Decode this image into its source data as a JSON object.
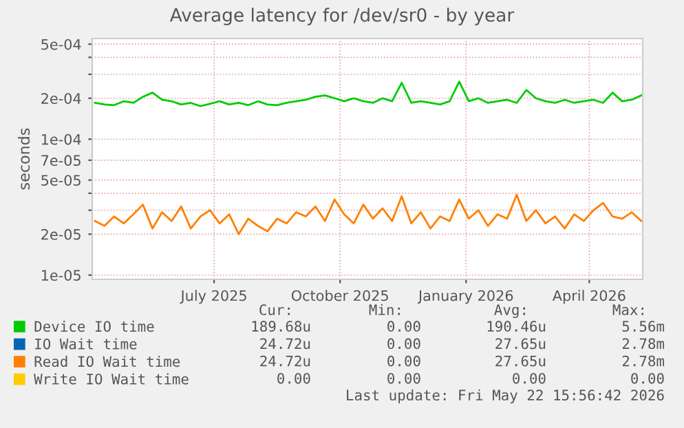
{
  "chart_data": {
    "type": "line",
    "title": "Average latency for /dev/sr0 - by year",
    "ylabel": "seconds",
    "log": "y",
    "x": [
      "2025-04-05",
      "2025-04-12",
      "2025-04-19",
      "2025-04-26",
      "2025-05-03",
      "2025-05-10",
      "2025-05-17",
      "2025-05-24",
      "2025-05-31",
      "2025-06-07",
      "2025-06-14",
      "2025-06-21",
      "2025-06-28",
      "2025-07-05",
      "2025-07-12",
      "2025-07-19",
      "2025-07-26",
      "2025-08-02",
      "2025-08-09",
      "2025-08-16",
      "2025-08-23",
      "2025-08-30",
      "2025-09-06",
      "2025-09-13",
      "2025-09-20",
      "2025-09-27",
      "2025-10-04",
      "2025-10-11",
      "2025-10-18",
      "2025-10-25",
      "2025-11-01",
      "2025-11-08",
      "2025-11-15",
      "2025-11-22",
      "2025-11-29",
      "2025-12-06",
      "2025-12-13",
      "2025-12-20",
      "2025-12-27",
      "2026-01-03",
      "2026-01-10",
      "2026-01-17",
      "2026-01-24",
      "2026-01-31",
      "2026-02-07",
      "2026-02-14",
      "2026-02-21",
      "2026-02-28",
      "2026-03-07",
      "2026-03-14",
      "2026-03-21",
      "2026-03-28",
      "2026-04-04",
      "2026-04-11",
      "2026-04-18",
      "2026-04-25",
      "2026-05-02",
      "2026-05-09"
    ],
    "xlim": [
      "2025-04-03",
      "2026-05-10"
    ],
    "xticks": [
      {
        "value": "2025-07-01",
        "label": "July 2025"
      },
      {
        "value": "2025-10-01",
        "label": "October 2025"
      },
      {
        "value": "2026-01-01",
        "label": "January 2026"
      },
      {
        "value": "2026-04-01",
        "label": "April 2026"
      }
    ],
    "ylim": [
      9.3e-06,
      0.00055
    ],
    "yticks": [
      {
        "value": 1e-05,
        "label": "1e-05"
      },
      {
        "value": 2e-05,
        "label": "2e-05"
      },
      {
        "value": 3e-05,
        "label": null
      },
      {
        "value": 4e-05,
        "label": null
      },
      {
        "value": 5e-05,
        "label": "5e-05"
      },
      {
        "value": 7e-05,
        "label": "7e-05"
      },
      {
        "value": 0.0001,
        "label": "1e-04"
      },
      {
        "value": 0.0002,
        "label": "2e-04"
      },
      {
        "value": 0.0003,
        "label": null
      },
      {
        "value": 0.0004,
        "label": null
      },
      {
        "value": 0.0005,
        "label": "5e-04"
      }
    ],
    "grid": true,
    "legend": "bottom",
    "series": [
      {
        "name": "Device IO time",
        "color": "#00cc00",
        "values": [
          0.000185,
          0.00018,
          0.000178,
          0.00019,
          0.000185,
          0.000205,
          0.00022,
          0.000195,
          0.00019,
          0.00018,
          0.000185,
          0.000175,
          0.000182,
          0.00019,
          0.00018,
          0.000185,
          0.000178,
          0.00019,
          0.00018,
          0.000178,
          0.000185,
          0.00019,
          0.000195,
          0.000205,
          0.00021,
          0.0002,
          0.00019,
          0.0002,
          0.00019,
          0.000185,
          0.0002,
          0.00019,
          0.00026,
          0.000185,
          0.00019,
          0.000185,
          0.00018,
          0.00019,
          0.000265,
          0.00019,
          0.0002,
          0.000185,
          0.00019,
          0.000195,
          0.000185,
          0.00023,
          0.0002,
          0.00019,
          0.000185,
          0.000195,
          0.000185,
          0.00019,
          0.000195,
          0.000185,
          0.00022,
          0.00019,
          0.000195,
          0.00021
        ]
      },
      {
        "name": "IO Wait time",
        "color": "#0066b3",
        "values": [
          null,
          null,
          null,
          null,
          null,
          null,
          null,
          null,
          null,
          null,
          null,
          null,
          null,
          null,
          null,
          null,
          null,
          null,
          null,
          null,
          null,
          null,
          null,
          null,
          null,
          null,
          null,
          null,
          null,
          null,
          null,
          null,
          null,
          null,
          null,
          null,
          null,
          null,
          null,
          null,
          null,
          null,
          null,
          null,
          null,
          null,
          null,
          null,
          null,
          null,
          null,
          null,
          null,
          null,
          null,
          null,
          null,
          null
        ]
      },
      {
        "name": "Read IO Wait time",
        "color": "#ff8000",
        "values": [
          2.5e-05,
          2.3e-05,
          2.7e-05,
          2.4e-05,
          2.8e-05,
          3.3e-05,
          2.2e-05,
          2.9e-05,
          2.5e-05,
          3.2e-05,
          2.2e-05,
          2.7e-05,
          3e-05,
          2.4e-05,
          2.8e-05,
          2e-05,
          2.6e-05,
          2.3e-05,
          2.1e-05,
          2.6e-05,
          2.4e-05,
          2.9e-05,
          2.7e-05,
          3.2e-05,
          2.5e-05,
          3.6e-05,
          2.8e-05,
          2.4e-05,
          3.3e-05,
          2.6e-05,
          3.1e-05,
          2.5e-05,
          3.8e-05,
          2.4e-05,
          2.9e-05,
          2.2e-05,
          2.7e-05,
          2.5e-05,
          3.6e-05,
          2.6e-05,
          3e-05,
          2.3e-05,
          2.8e-05,
          2.6e-05,
          3.9e-05,
          2.5e-05,
          3e-05,
          2.4e-05,
          2.7e-05,
          2.2e-05,
          2.8e-05,
          2.5e-05,
          3e-05,
          3.4e-05,
          2.7e-05,
          2.6e-05,
          2.9e-05,
          2.5e-05
        ]
      },
      {
        "name": "Write IO Wait time",
        "color": "#ffcc00",
        "values": [
          null,
          null,
          null,
          null,
          null,
          null,
          null,
          null,
          null,
          null,
          null,
          null,
          null,
          null,
          null,
          null,
          null,
          null,
          null,
          null,
          null,
          null,
          null,
          null,
          null,
          null,
          null,
          null,
          null,
          null,
          null,
          null,
          null,
          null,
          null,
          null,
          null,
          null,
          null,
          null,
          null,
          null,
          null,
          null,
          null,
          null,
          null,
          null,
          null,
          null,
          null,
          null,
          null,
          null,
          null,
          null,
          null,
          null
        ]
      }
    ],
    "annotations": [
      "Cur:",
      "Min:",
      "Avg:",
      "Max:",
      "189.68u",
      "0.00",
      "190.46u",
      "5.56m",
      "24.72u",
      "0.00",
      "27.65u",
      "2.78m",
      "24.72u",
      "0.00",
      "27.65u",
      "2.78m",
      "0.00",
      "0.00",
      "0.00",
      "0.00",
      "Last update: Fri May 22 15:56:42 2026"
    ]
  }
}
